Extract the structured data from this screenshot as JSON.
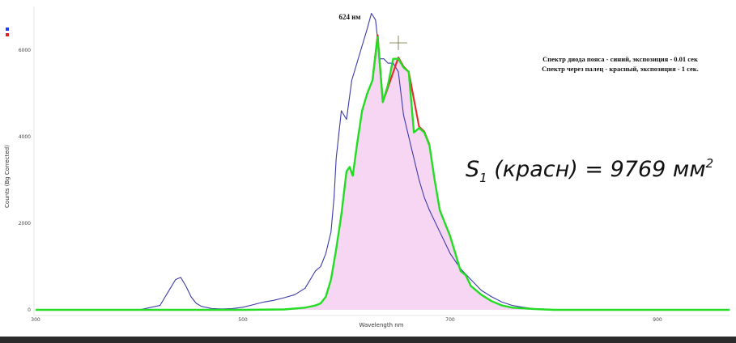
{
  "chart_data": {
    "type": "line",
    "xlabel": "Wavelength nm",
    "ylabel": "Counts (Bg Corrected)",
    "xlim": [
      300,
      1000
    ],
    "ylim": [
      -50,
      7000
    ],
    "x_ticks": [
      300,
      500,
      700,
      900
    ],
    "y_ticks": [
      0,
      2000,
      4000,
      6000
    ],
    "colors": {
      "blue": "#3a3aa8",
      "red": "#e03030",
      "green": "#22dd22",
      "fill": "#f7d6f3"
    },
    "annotations": {
      "peak": {
        "text": "624 нм",
        "x": 624,
        "y": 6800
      },
      "legend_lines": [
        "Спектр диода пояса - синий, экспозиция - 0.01 сек",
        "Спектр через палец - красный, экспозиция - 1 сек."
      ],
      "area_label": {
        "main": "S",
        "sub": "1",
        "rest": " (красн) = 9769 мм",
        "sup": "2"
      }
    },
    "series": [
      {
        "color": "blue",
        "x": [
          300,
          350,
          400,
          420,
          425,
          430,
          435,
          440,
          445,
          450,
          455,
          460,
          470,
          480,
          490,
          500,
          510,
          520,
          530,
          540,
          550,
          560,
          565,
          570,
          575,
          580,
          585,
          588,
          590,
          595,
          600,
          605,
          610,
          615,
          620,
          624,
          628,
          632,
          636,
          640,
          645,
          650,
          655,
          660,
          665,
          670,
          675,
          680,
          690,
          700,
          710,
          720,
          730,
          740,
          750,
          760,
          770,
          780,
          800,
          850,
          900,
          1000
        ],
        "y": [
          0,
          0,
          0,
          100,
          300,
          500,
          700,
          750,
          550,
          300,
          150,
          80,
          30,
          20,
          30,
          60,
          120,
          180,
          220,
          280,
          350,
          500,
          700,
          900,
          1000,
          1300,
          1800,
          2600,
          3500,
          4600,
          4400,
          5300,
          5700,
          6100,
          6500,
          6850,
          6700,
          5800,
          5800,
          5700,
          5700,
          5500,
          4500,
          4000,
          3500,
          3000,
          2600,
          2300,
          1800,
          1300,
          950,
          700,
          450,
          300,
          180,
          100,
          60,
          30,
          10,
          0,
          0,
          0
        ]
      },
      {
        "color": "green",
        "x": [
          300,
          500,
          540,
          560,
          570,
          575,
          580,
          585,
          590,
          595,
          600,
          603,
          606,
          610,
          615,
          620,
          625,
          630,
          635,
          640,
          645,
          650,
          655,
          660,
          665,
          670,
          675,
          680,
          685,
          690,
          695,
          700,
          705,
          710,
          715,
          720,
          730,
          740,
          750,
          760,
          780,
          800,
          850,
          900,
          1000
        ],
        "y": [
          0,
          0,
          10,
          50,
          100,
          150,
          300,
          700,
          1400,
          2200,
          3200,
          3300,
          3100,
          3800,
          4600,
          5000,
          5300,
          6300,
          4800,
          5200,
          5800,
          5800,
          5600,
          5500,
          4100,
          4200,
          4100,
          3800,
          3000,
          2300,
          2000,
          1700,
          1300,
          900,
          800,
          550,
          350,
          200,
          100,
          50,
          20,
          0,
          0,
          0,
          0
        ]
      },
      {
        "color": "red",
        "x": [
          625,
          630,
          635,
          650,
          655,
          660,
          670,
          675,
          680
        ],
        "y": [
          5300,
          6350,
          4800,
          5830,
          5620,
          5500,
          4230,
          4120,
          3820
        ]
      }
    ]
  }
}
